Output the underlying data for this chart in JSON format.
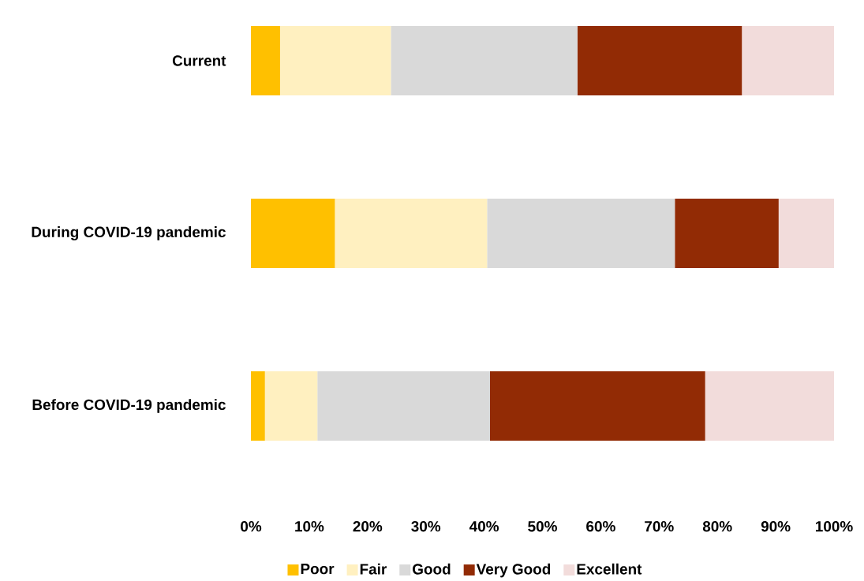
{
  "chart_data": {
    "type": "bar",
    "orientation": "horizontal",
    "stacked": true,
    "categories": [
      "Current",
      "During COVID-19 pandemic",
      "Before COVID-19 pandemic"
    ],
    "series": [
      {
        "name": "Poor",
        "color": "#ffc000",
        "values": [
          0.05,
          0.144,
          0.024
        ]
      },
      {
        "name": "Fair",
        "color": "#fff0c0",
        "values": [
          0.19,
          0.261,
          0.09
        ]
      },
      {
        "name": "Good",
        "color": "#d9d9d9",
        "values": [
          0.32,
          0.322,
          0.296
        ]
      },
      {
        "name": "Very Good",
        "color": "#922b05",
        "values": [
          0.282,
          0.178,
          0.369
        ]
      },
      {
        "name": "Excellent",
        "color": "#f2dcdb",
        "values": [
          0.158,
          0.095,
          0.221
        ]
      }
    ],
    "xlim": [
      0,
      1
    ],
    "xticks": [
      {
        "value": 0,
        "label": "0%"
      },
      {
        "value": 0.1,
        "label": "10%"
      },
      {
        "value": 0.2,
        "label": "20%"
      },
      {
        "value": 0.3,
        "label": "30%"
      },
      {
        "value": 0.4,
        "label": "40%"
      },
      {
        "value": 0.5,
        "label": "50%"
      },
      {
        "value": 0.6,
        "label": "60%"
      },
      {
        "value": 0.7,
        "label": "70%"
      },
      {
        "value": 0.8,
        "label": "80%"
      },
      {
        "value": 0.9,
        "label": "90%"
      },
      {
        "value": 1,
        "label": "100%"
      }
    ],
    "legend": "bottom"
  }
}
